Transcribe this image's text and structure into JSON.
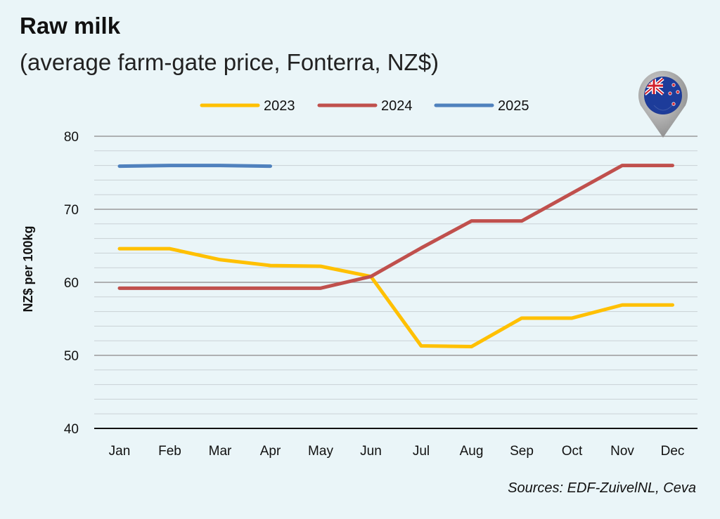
{
  "title": "Raw milk",
  "subtitle": "(average farm-gate price, Fonterra, NZ$)",
  "source": "Sources: EDF-ZuivelNL, Ceva",
  "badge": {
    "icon": "new-zealand-flag-map-pin-icon"
  },
  "chart_data": {
    "type": "line",
    "title": "Raw milk",
    "subtitle": "(average farm-gate price, Fonterra, NZ$)",
    "ylabel": "NZ$ per 100kg",
    "xlabel": "",
    "ylim": [
      40,
      80
    ],
    "yticks": [
      40,
      50,
      60,
      70,
      80
    ],
    "grid": true,
    "legend_position": "top-center",
    "categories": [
      "Jan",
      "Feb",
      "Mar",
      "Apr",
      "May",
      "Jun",
      "Jul",
      "Aug",
      "Sep",
      "Oct",
      "Nov",
      "Dec"
    ],
    "series": [
      {
        "name": "2023",
        "color": "#ffc000",
        "values": [
          64.6,
          64.6,
          63.1,
          62.3,
          62.2,
          60.8,
          51.3,
          51.2,
          55.1,
          55.1,
          56.9,
          56.9
        ]
      },
      {
        "name": "2024",
        "color": "#c0504d",
        "values": [
          59.2,
          59.2,
          59.2,
          59.2,
          59.2,
          60.8,
          64.7,
          68.4,
          68.4,
          72.2,
          76.0,
          76.0
        ]
      },
      {
        "name": "2025",
        "color": "#4f81bd",
        "values": [
          75.9,
          76.0,
          76.0,
          75.9,
          null,
          null,
          null,
          null,
          null,
          null,
          null,
          null
        ]
      }
    ]
  }
}
